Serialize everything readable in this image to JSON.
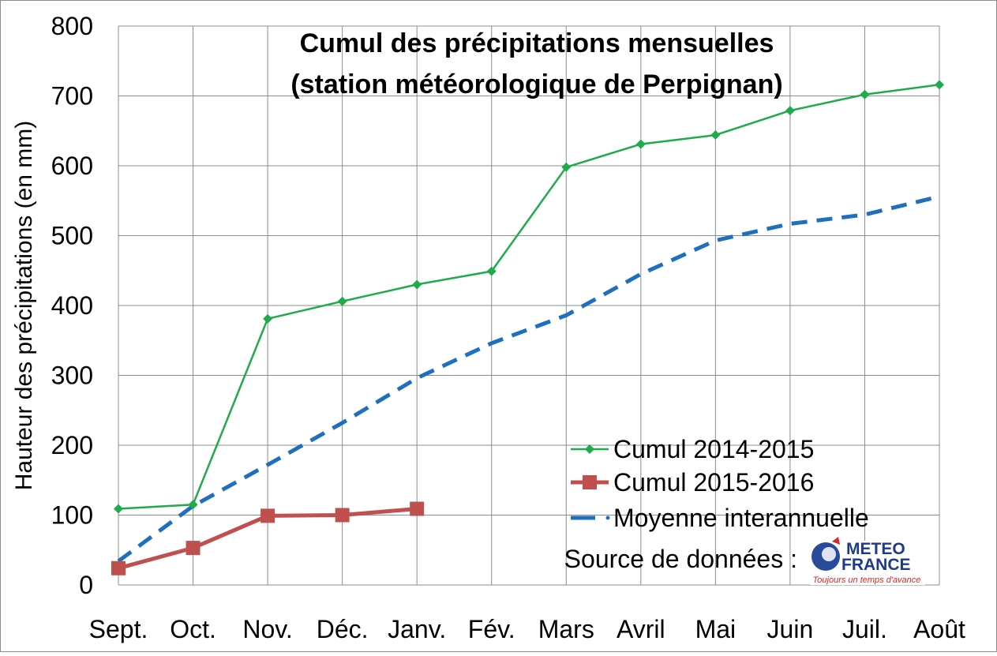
{
  "chart_data": {
    "type": "line",
    "title": [
      "Cumul des précipitations mensuelles",
      "(station météorologique de Perpignan)"
    ],
    "ylabel": "Hauteur des précipitations (en mm)",
    "xlabel": "",
    "ylim": [
      0,
      800
    ],
    "yticks": [
      0,
      100,
      200,
      300,
      400,
      500,
      600,
      700,
      800
    ],
    "categories": [
      "Sept.",
      "Oct.",
      "Nov.",
      "Déc.",
      "Janv.",
      "Fév.",
      "Mars",
      "Avril",
      "Mai",
      "Juin",
      "Juil.",
      "Août"
    ],
    "grid": true,
    "legend_position": "bottom-right",
    "series": [
      {
        "name": "Cumul 2014-2015",
        "color": "#1faa4b",
        "marker": "diamond",
        "style": "solid",
        "values": [
          109,
          115,
          381,
          406,
          430,
          449,
          598,
          631,
          644,
          679,
          702,
          716
        ]
      },
      {
        "name": "Cumul 2015-2016",
        "color": "#c0504d",
        "marker": "square",
        "style": "solid",
        "values": [
          24,
          53,
          99,
          100,
          109,
          null,
          null,
          null,
          null,
          null,
          null,
          null
        ]
      },
      {
        "name": "Moyenne interannuelle",
        "color": "#1f6fbf",
        "marker": "none",
        "style": "dashed",
        "values": [
          34,
          113,
          172,
          232,
          296,
          346,
          386,
          445,
          493,
          517,
          530,
          556
        ]
      }
    ],
    "source_label": "Source de données :",
    "logo": {
      "line1": "METEO",
      "line2": "FRANCE",
      "tagline": "Toujours un temps d'avance",
      "colors": {
        "blue": "#1e3a8a",
        "red": "#d62828"
      }
    }
  }
}
